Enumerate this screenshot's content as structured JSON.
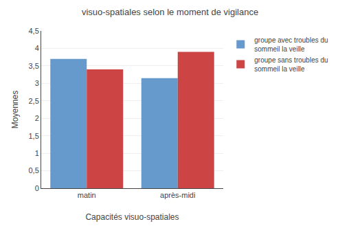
{
  "chart_data": {
    "type": "bar",
    "title": "visuo-spatiales selon le moment de vigilance",
    "xlabel": "Capacités visuo-spatiales",
    "ylabel": "Moyennes",
    "categories": [
      "matin",
      "après-midi"
    ],
    "series": [
      {
        "name": "groupe avec troubles du\nsommeil la veille",
        "color": "#6699CC",
        "values": [
          3.7,
          3.15
        ]
      },
      {
        "name": "groupe sans troubles du\nsommeil la veille",
        "color": "#CC4444",
        "values": [
          3.4,
          3.9
        ]
      }
    ],
    "ylim": [
      0,
      4.5
    ],
    "yticks": [
      0,
      {
        "value": 0.5,
        "label": "0,5"
      },
      1,
      {
        "value": 1.5,
        "label": "1,5"
      },
      2,
      {
        "value": 2.5,
        "label": "2,5"
      },
      3,
      {
        "value": 3.5,
        "label": "3,5"
      },
      4,
      {
        "value": 4.5,
        "label": "4,5"
      }
    ],
    "grid": true,
    "legend": "right"
  }
}
